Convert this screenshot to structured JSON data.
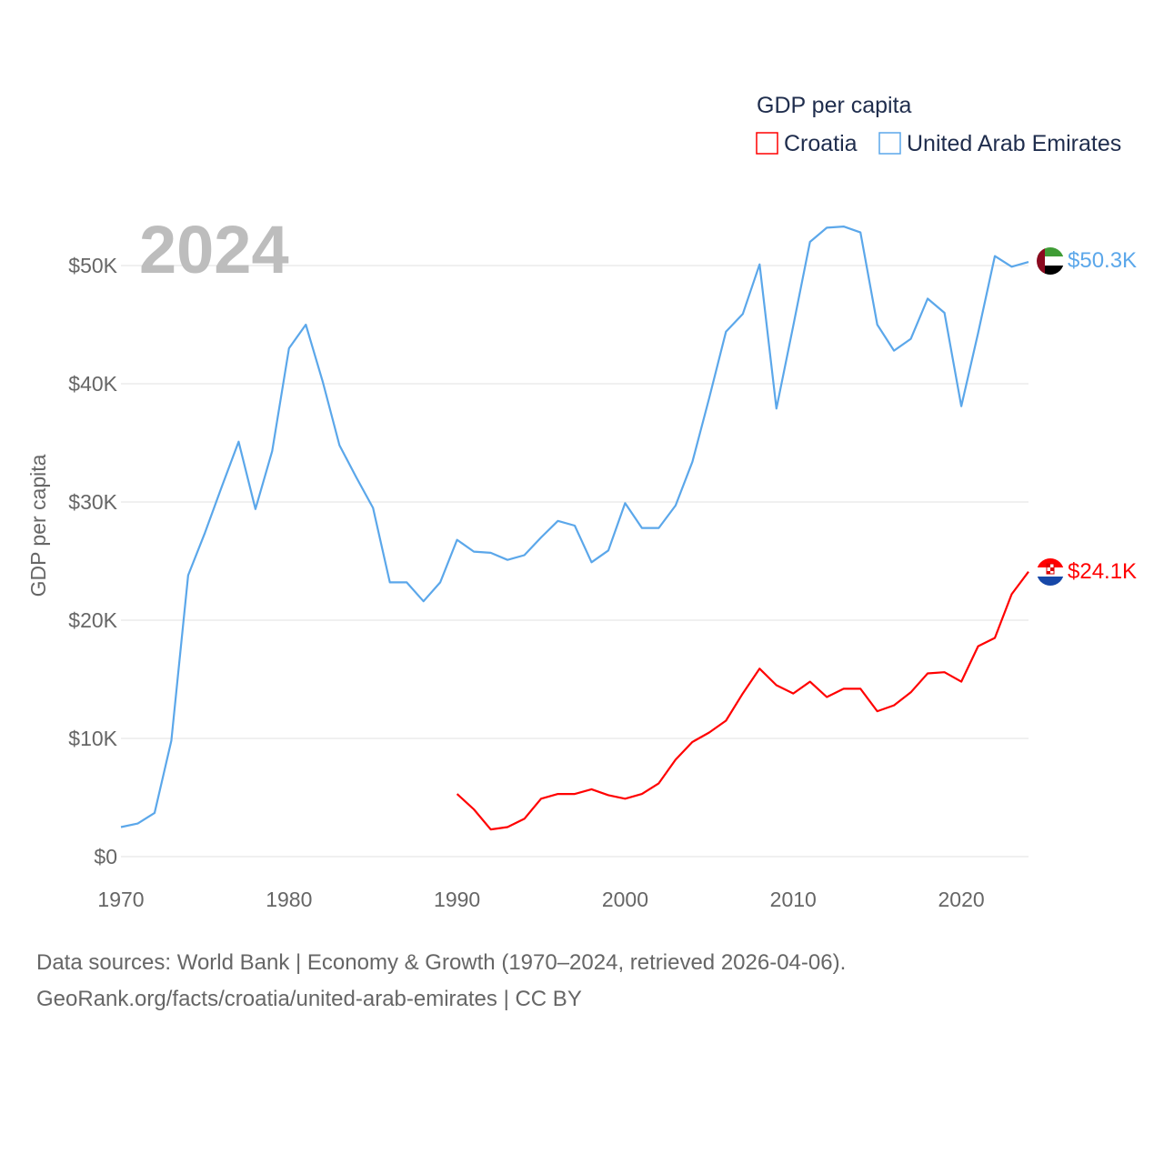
{
  "chart_data": {
    "type": "line",
    "title": "GDP per capita",
    "year_label": "2024",
    "xlabel": "",
    "ylabel": "GDP per capita",
    "xlim": [
      1970,
      2024
    ],
    "ylim": [
      0,
      50000
    ],
    "x_ticks": [
      1970,
      1980,
      1990,
      2000,
      2010,
      2020
    ],
    "x_tick_labels": [
      "1970",
      "1980",
      "1990",
      "2000",
      "2010",
      "2020"
    ],
    "y_ticks": [
      0,
      10000,
      20000,
      30000,
      40000,
      50000
    ],
    "y_tick_labels": [
      "$0",
      "$10K",
      "$20K",
      "$30K",
      "$40K",
      "$50K"
    ],
    "grid": true,
    "legend_placement": "top-right",
    "series": [
      {
        "name": "Croatia",
        "color": "#ff0000",
        "end_label": "$24.1K",
        "start_year": 1990,
        "values": [
          5300,
          4000,
          2300,
          2500,
          3200,
          4900,
          5300,
          5300,
          5700,
          5200,
          4900,
          5300,
          6200,
          8200,
          9700,
          10500,
          11500,
          13800,
          15900,
          14500,
          13800,
          14800,
          13500,
          14200,
          14200,
          12300,
          12800,
          13900,
          15500,
          15600,
          14800,
          17800,
          18500,
          22200,
          24100
        ]
      },
      {
        "name": "United Arab Emirates",
        "color": "#5ba7ea",
        "end_label": "$50.3K",
        "start_year": 1970,
        "values": [
          2500,
          2800,
          3700,
          9800,
          23800,
          27400,
          31300,
          35100,
          29400,
          34300,
          43000,
          45000,
          40200,
          34800,
          32100,
          29500,
          23200,
          23200,
          21600,
          23200,
          26800,
          25800,
          25700,
          25100,
          25500,
          27000,
          28400,
          28000,
          24900,
          25900,
          29900,
          27800,
          27800,
          29700,
          33400,
          38800,
          44400,
          45900,
          50100,
          37900,
          44900,
          52000,
          53200,
          53300,
          52800,
          45000,
          42800,
          43800,
          47200,
          46000,
          38100,
          44300,
          50800,
          49900,
          50300
        ]
      }
    ]
  },
  "footer": {
    "line1": "Data sources: World Bank | Economy & Growth (1970–2024, retrieved 2026-04-06).",
    "line2": "GeoRank.org/facts/croatia/united-arab-emirates | CC BY"
  }
}
